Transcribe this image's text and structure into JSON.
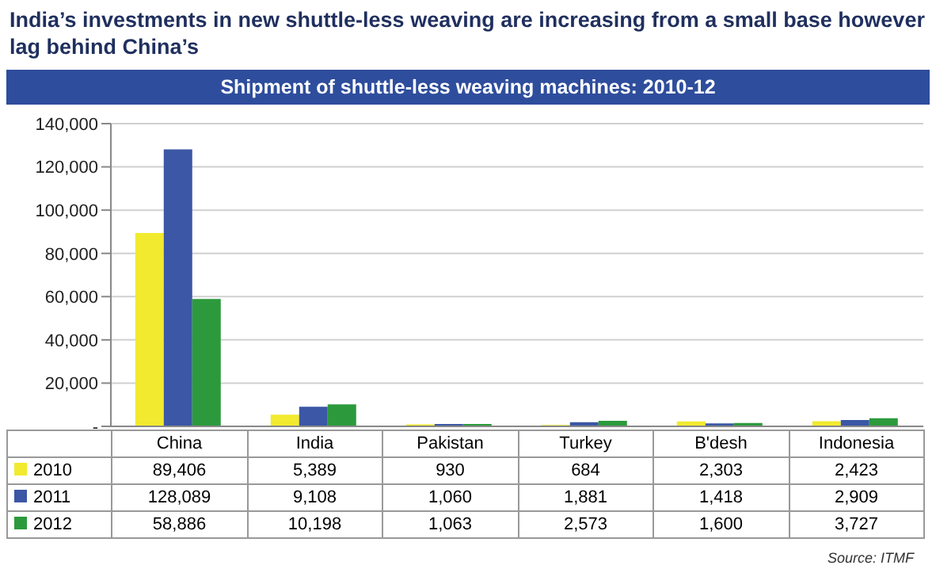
{
  "chart_data": {
    "type": "bar",
    "title": "India’s investments in new shuttle-less weaving are increasing from a small base however lag behind China’s",
    "subtitle": "Shipment of shuttle-less weaving machines: 2010-12",
    "categories": [
      "China",
      "India",
      "Pakistan",
      "Turkey",
      "B'desh",
      "Indonesia"
    ],
    "series": [
      {
        "name": "2010",
        "color": "#f2ea2e",
        "values": [
          89406,
          5389,
          930,
          684,
          2303,
          2423
        ],
        "value_labels": [
          "89,406",
          "5,389",
          "930",
          "684",
          "2,303",
          "2,423"
        ]
      },
      {
        "name": "2011",
        "color": "#3b57a5",
        "values": [
          128089,
          9108,
          1060,
          1881,
          1418,
          2909
        ],
        "value_labels": [
          "128,089",
          "9,108",
          "1,060",
          "1,881",
          "1,418",
          "2,909"
        ]
      },
      {
        "name": "2012",
        "color": "#2c9a3c",
        "values": [
          58886,
          10198,
          1063,
          2573,
          1600,
          3727
        ],
        "value_labels": [
          "58,886",
          "10,198",
          "1,063",
          "2,573",
          "1,600",
          "3,727"
        ]
      }
    ],
    "ylim": [
      0,
      140000
    ],
    "yticks": [
      {
        "value": 0,
        "label": "-"
      },
      {
        "value": 20000,
        "label": "20,000"
      },
      {
        "value": 40000,
        "label": "40,000"
      },
      {
        "value": 60000,
        "label": "60,000"
      },
      {
        "value": 80000,
        "label": "80,000"
      },
      {
        "value": 100000,
        "label": "100,000"
      },
      {
        "value": 120000,
        "label": "120,000"
      },
      {
        "value": 140000,
        "label": "140,000"
      }
    ],
    "grid": "y",
    "legend": "bottom",
    "annotations": [
      "Source: ITMF"
    ]
  }
}
